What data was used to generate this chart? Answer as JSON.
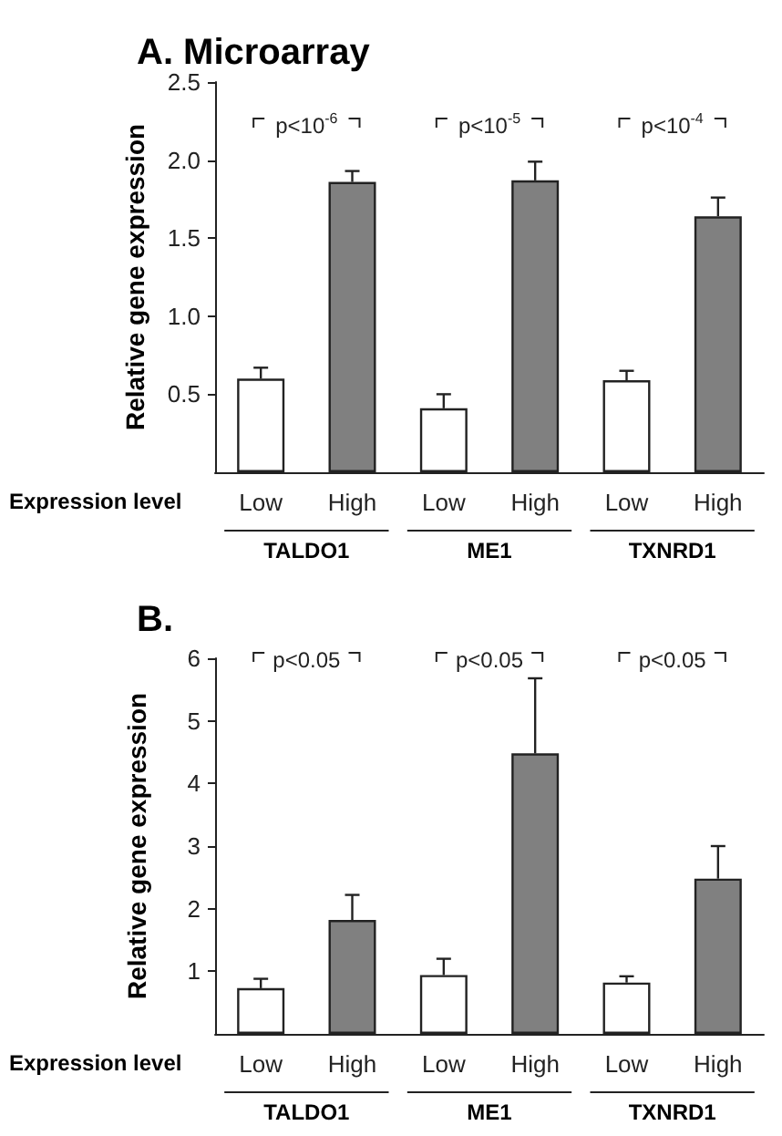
{
  "chart_data": [
    {
      "type": "bar",
      "title": "A. Microarray",
      "ylabel": "Relative gene expression",
      "xlabel": "Expression level",
      "categories": [
        "Low",
        "High",
        "Low",
        "High",
        "Low",
        "High"
      ],
      "values": [
        0.6,
        1.86,
        0.41,
        1.87,
        0.59,
        1.64
      ],
      "colors": [
        "#ffffff",
        "#808080",
        "#ffffff",
        "#808080",
        "#ffffff",
        "#808080"
      ],
      "errors": [
        [
          0.6,
          0.67
        ],
        [
          1.86,
          1.93
        ],
        [
          0.41,
          0.5
        ],
        [
          1.87,
          1.99
        ],
        [
          0.59,
          0.65
        ],
        [
          1.64,
          1.76
        ]
      ],
      "ylim": [
        0,
        2.5
      ],
      "yticks": [
        0.5,
        {
          "value": 1,
          "label": "1.0"
        },
        1.5,
        {
          "value": 2,
          "label": "2.0"
        },
        2.5
      ],
      "annotations": [
        "TALDO1",
        "ME1",
        "TXNRD1",
        "p<10$^{-6}$",
        "p<10$^{-5}$",
        "p<10$^{-4}$"
      ],
      "grid": false
    },
    {
      "type": "bar",
      "title": "B.",
      "ylabel": "Relative gene expression",
      "xlabel": "Expression level",
      "categories": [
        "Low",
        "High",
        "Low",
        "High",
        "Low",
        "High"
      ],
      "values": [
        0.73,
        1.82,
        0.94,
        4.48,
        0.82,
        2.48
      ],
      "colors": [
        "#ffffff",
        "#808080",
        "#ffffff",
        "#808080",
        "#ffffff",
        "#808080"
      ],
      "errors": [
        [
          0.73,
          0.88
        ],
        [
          1.82,
          2.22
        ],
        [
          0.94,
          1.2
        ],
        [
          4.48,
          5.68
        ],
        [
          0.82,
          0.92
        ],
        [
          2.48,
          3.0
        ]
      ],
      "ylim": [
        0,
        6
      ],
      "yticks": [
        1,
        2,
        3,
        4,
        5,
        6
      ],
      "annotations": [
        "TALDO1",
        "ME1",
        "TXNRD1",
        "p<0.05",
        "p<0.05",
        "p<0.05"
      ],
      "grid": false
    }
  ]
}
